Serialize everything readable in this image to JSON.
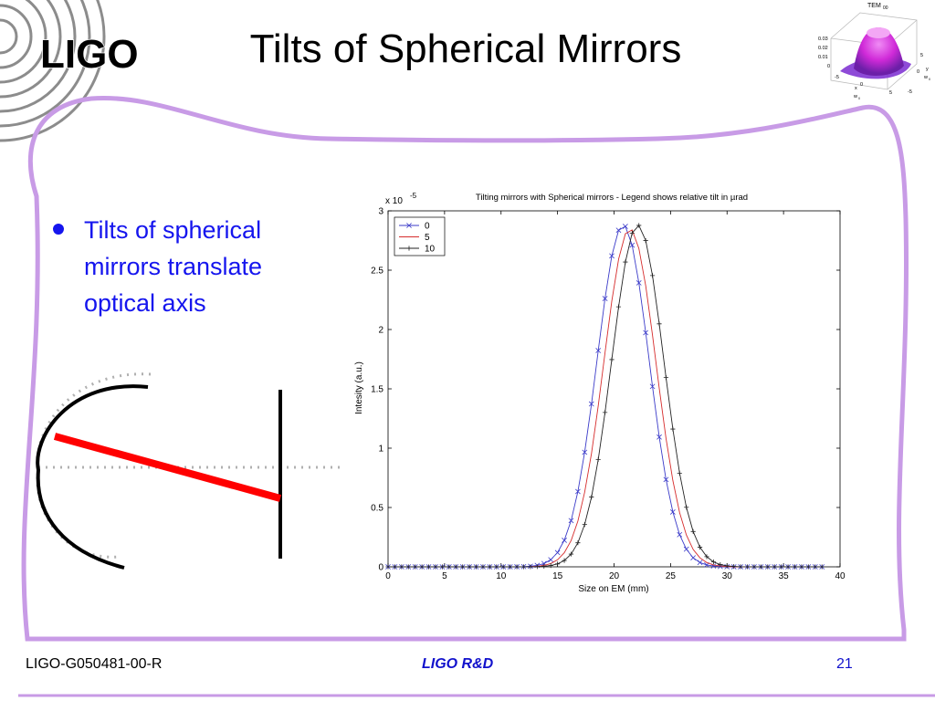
{
  "logo": {
    "text": "LIGO"
  },
  "slide": {
    "title": "Tilts of Spherical Mirrors",
    "bullet": "Tilts of spherical mirrors translate optical axis"
  },
  "footer": {
    "doc_id": "LIGO-G050481-00-R",
    "center": "LIGO R&D",
    "page": "21"
  },
  "colors": {
    "frame": "#c89be6",
    "bullet_text": "#1515ee",
    "beam": "#ff0000",
    "mirror": "#000000",
    "axis_dotted": "#b0b0b0"
  },
  "chart_data": [
    {
      "type": "line",
      "title": "Tilting mirrors with Spherical mirrors - Legend shows relative tilt in µrad",
      "xlabel": "Size on EM (mm)",
      "ylabel": "Intesity (a.u.)",
      "y_exponent_label": "x 10",
      "y_exponent_power": "-5",
      "xlim": [
        0,
        40
      ],
      "ylim": [
        0,
        3
      ],
      "xticks": [
        0,
        5,
        10,
        15,
        20,
        25,
        30,
        35,
        40
      ],
      "yticks": [
        0,
        0.5,
        1,
        1.5,
        2,
        2.5,
        3
      ],
      "legend_position": "top-left",
      "grid": false,
      "series": [
        {
          "name": "0",
          "center": 20.8,
          "peak": 2.88,
          "sigma": 2.3,
          "color": "#3b3bc9",
          "marker": "x"
        },
        {
          "name": "5",
          "center": 21.4,
          "peak": 2.85,
          "sigma": 2.3,
          "color": "#d62c2c",
          "marker": "none"
        },
        {
          "name": "10",
          "center": 22.1,
          "peak": 2.88,
          "sigma": 2.3,
          "color": "#222222",
          "marker": "+"
        }
      ],
      "x_sample_start": 0,
      "x_sample_end": 38.8,
      "x_sample_step": 0.6
    },
    {
      "type": "surface",
      "title": "TEM",
      "title_subscript": "00",
      "zticks": [
        "0.03",
        "0.02",
        "0.01",
        "0"
      ],
      "xticks": [
        "-5",
        "0",
        "5"
      ],
      "yticks": [
        "-5",
        "0",
        "5"
      ],
      "xlabel": "x",
      "xlabel_sub": "w",
      "xlabel_sub2": "0",
      "ylabel": "y",
      "ylabel_sub": "w",
      "ylabel_sub2": "0"
    }
  ]
}
